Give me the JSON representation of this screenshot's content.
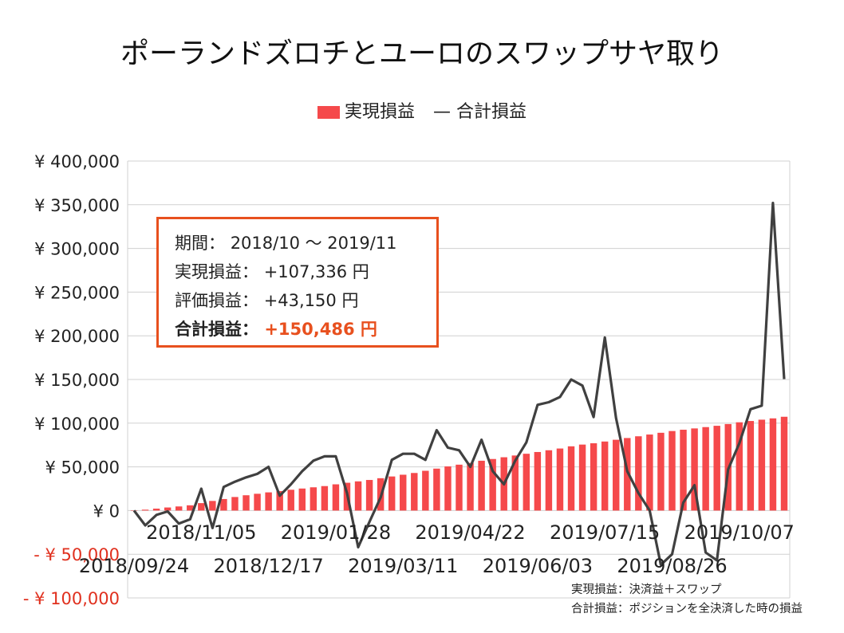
{
  "chart_data": {
    "type": "bar+line",
    "title": "ポーランドズロチとユーロのスワップサヤ取り",
    "legend": {
      "bar_label": "実現損益",
      "line_label": "合計損益",
      "line_marker": "—",
      "placement": "top-center"
    },
    "colors": {
      "bar": "#f5494b",
      "line": "#404040",
      "accent": "#e8501e",
      "negative_tick": "#e0301e"
    },
    "ylim": [
      -100000,
      400000
    ],
    "y_ticks": [
      {
        "value": 400000,
        "label": "¥ 400,000"
      },
      {
        "value": 350000,
        "label": "¥ 350,000"
      },
      {
        "value": 300000,
        "label": "¥ 300,000"
      },
      {
        "value": 250000,
        "label": "¥ 250,000"
      },
      {
        "value": 200000,
        "label": "¥ 200,000"
      },
      {
        "value": 150000,
        "label": "¥ 150,000"
      },
      {
        "value": 100000,
        "label": "¥ 100,000"
      },
      {
        "value": 50000,
        "label": "¥ 50,000"
      },
      {
        "value": 0,
        "label": "¥ 0"
      },
      {
        "value": -50000,
        "label": "- ¥ 50,000"
      },
      {
        "value": -100000,
        "label": "- ¥ 100,000"
      }
    ],
    "x_tick_labels_upper": [
      {
        "index": 6,
        "label": "2018/11/05"
      },
      {
        "index": 18,
        "label": "2019/01/28"
      },
      {
        "index": 30,
        "label": "2019/04/22"
      },
      {
        "index": 42,
        "label": "2019/07/15"
      },
      {
        "index": 54,
        "label": "2019/10/07"
      }
    ],
    "x_tick_labels_lower": [
      {
        "index": 0,
        "label": "2018/09/24"
      },
      {
        "index": 12,
        "label": "2018/12/17"
      },
      {
        "index": 24,
        "label": "2019/03/11"
      },
      {
        "index": 36,
        "label": "2019/06/03"
      },
      {
        "index": 48,
        "label": "2019/08/26"
      }
    ],
    "gridlines": true,
    "bar_values": [
      0,
      1000,
      2200,
      3500,
      4700,
      6000,
      8500,
      11000,
      13200,
      15500,
      17500,
      19200,
      20800,
      22300,
      23800,
      25200,
      26600,
      28000,
      30000,
      31800,
      33400,
      35000,
      37000,
      39000,
      41000,
      43000,
      45500,
      48000,
      50500,
      52500,
      54500,
      57000,
      59000,
      61000,
      63000,
      65000,
      67000,
      69000,
      71000,
      73500,
      75500,
      77000,
      79000,
      81000,
      83000,
      85000,
      87000,
      89000,
      91000,
      92500,
      94000,
      95500,
      97000,
      99000,
      101000,
      102500,
      104000,
      105500,
      107336
    ],
    "line_values": [
      0,
      -17000,
      -5000,
      -1000,
      -15000,
      -10000,
      25000,
      -20000,
      27000,
      33000,
      38000,
      42000,
      50000,
      17000,
      30000,
      45000,
      57000,
      62000,
      62000,
      20000,
      -42000,
      -13000,
      15000,
      58000,
      65000,
      65000,
      58000,
      92000,
      72000,
      69000,
      50000,
      81000,
      45000,
      30000,
      57000,
      78000,
      121000,
      124000,
      130000,
      150000,
      143000,
      107000,
      198000,
      106000,
      45000,
      20000,
      0,
      -62000,
      -50000,
      9000,
      29000,
      -48000,
      -57000,
      47000,
      77000,
      116000,
      120000,
      352000,
      150486
    ]
  },
  "infobox": {
    "period_label": "期間：",
    "period_value": "2018/10 ～ 2019/11",
    "realized_label": "実現損益：",
    "realized_value": "+107,336 円",
    "unrealized_label": "評価損益：",
    "unrealized_value": "+43,150 円",
    "total_label": "合計損益：",
    "total_value": "+150,486 円"
  },
  "footnotes": [
    "実現損益：決済益＋スワップ",
    "合計損益：ポジションを全決済した時の損益"
  ]
}
